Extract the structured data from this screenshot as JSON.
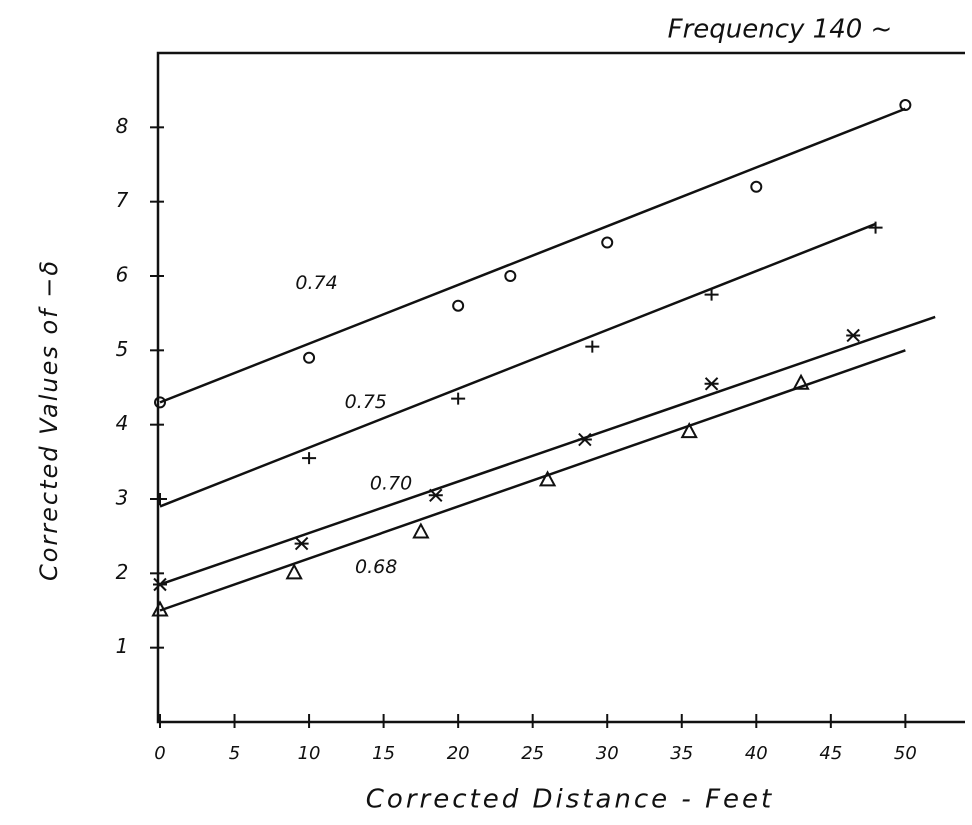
{
  "chart_data": {
    "type": "scatter",
    "title": "Frequency 140 ~",
    "xlabel": "Corrected Distance - Feet",
    "ylabel": "Corrected Values of −δ",
    "xlim": [
      0,
      54
    ],
    "ylim": [
      0,
      9
    ],
    "xticks": [
      0,
      5,
      10,
      15,
      20,
      25,
      30,
      35,
      40,
      45,
      50
    ],
    "yticks": [
      1,
      2,
      3,
      4,
      5,
      6,
      7,
      8
    ],
    "series": [
      {
        "name": "0.74",
        "marker": "circle",
        "color": "#111111",
        "x": [
          0,
          10,
          20,
          23.5,
          30,
          40,
          50
        ],
        "values": [
          4.3,
          4.9,
          5.6,
          6.0,
          6.45,
          7.2,
          8.3
        ],
        "fit_x": [
          0,
          50
        ],
        "fit_values": [
          4.3,
          8.25
        ]
      },
      {
        "name": "0.75",
        "marker": "plus",
        "color": "#111111",
        "x": [
          0,
          10,
          20,
          29,
          37,
          48
        ],
        "values": [
          3.0,
          3.55,
          4.35,
          5.05,
          5.75,
          6.65
        ],
        "fit_x": [
          0,
          48
        ],
        "fit_values": [
          2.9,
          6.7
        ]
      },
      {
        "name": "0.70",
        "marker": "star",
        "color": "#111111",
        "x": [
          0,
          9.5,
          18.5,
          28.5,
          37,
          46.5
        ],
        "values": [
          1.85,
          2.4,
          3.05,
          3.8,
          4.55,
          5.2
        ],
        "fit_x": [
          0,
          52
        ],
        "fit_values": [
          1.85,
          5.45
        ]
      },
      {
        "name": "0.68",
        "marker": "triangle",
        "color": "#111111",
        "x": [
          0,
          9,
          17.5,
          26,
          35.5,
          43
        ],
        "values": [
          1.5,
          2.0,
          2.55,
          3.25,
          3.9,
          4.55
        ],
        "fit_x": [
          0,
          50
        ],
        "fit_values": [
          1.5,
          5.0
        ]
      }
    ]
  }
}
